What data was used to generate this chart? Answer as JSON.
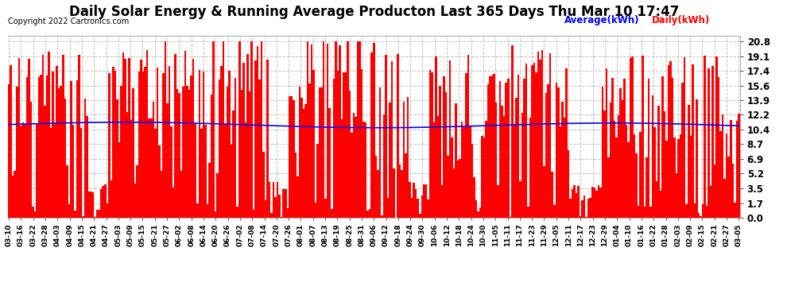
{
  "title": "Daily Solar Energy & Running Average Producton Last 365 Days Thu Mar 10 17:47",
  "copyright": "Copyright 2022 Cartronics.com",
  "legend_avg": "Average(kWh)",
  "legend_daily": "Daily(kWh)",
  "yticks": [
    0.0,
    1.7,
    3.5,
    5.2,
    6.9,
    8.7,
    10.4,
    12.2,
    13.9,
    15.6,
    17.4,
    19.1,
    20.8
  ],
  "ymax": 21.5,
  "ymin": 0.0,
  "bar_color": "#ff0000",
  "avg_color": "#0000ff",
  "bg_color": "#ffffff",
  "grid_color": "#bbbbbb",
  "title_fontsize": 12,
  "n_bars": 365,
  "xtick_labels": [
    "03-10",
    "03-16",
    "03-22",
    "03-28",
    "04-03",
    "04-09",
    "04-15",
    "04-21",
    "04-27",
    "05-03",
    "05-09",
    "05-15",
    "05-21",
    "05-27",
    "06-02",
    "06-08",
    "06-14",
    "06-20",
    "06-26",
    "07-02",
    "07-08",
    "07-14",
    "07-20",
    "07-26",
    "08-01",
    "08-07",
    "08-13",
    "08-19",
    "08-25",
    "08-31",
    "09-06",
    "09-12",
    "09-18",
    "09-24",
    "09-30",
    "10-06",
    "10-12",
    "10-18",
    "10-24",
    "10-30",
    "11-05",
    "11-11",
    "11-17",
    "11-23",
    "11-29",
    "12-05",
    "12-11",
    "12-17",
    "12-23",
    "12-29",
    "01-04",
    "01-10",
    "01-16",
    "01-22",
    "01-28",
    "02-03",
    "02-09",
    "02-15",
    "02-21",
    "02-27",
    "03-05"
  ]
}
